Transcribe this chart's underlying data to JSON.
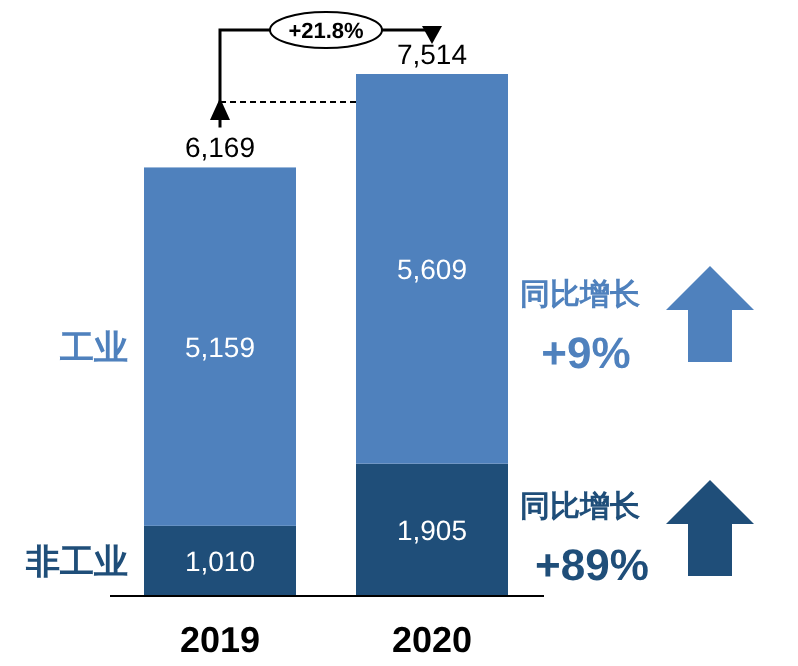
{
  "chart_data": {
    "type": "bar",
    "stacked": true,
    "categories": [
      "2019",
      "2020"
    ],
    "series": [
      {
        "name": "非工业",
        "color": "#1f4e79",
        "values": [
          1010,
          1905
        ],
        "value_labels": [
          "1,010",
          "1,905"
        ]
      },
      {
        "name": "工业",
        "color": "#4f81bd",
        "values": [
          5159,
          5609
        ],
        "value_labels": [
          "5,159",
          "5,609"
        ]
      }
    ],
    "totals": [
      "6,169",
      "7,514"
    ],
    "annotations": [
      "+21.8%",
      "同比增长",
      "+9%",
      "同比增长",
      "+89%"
    ]
  }
}
